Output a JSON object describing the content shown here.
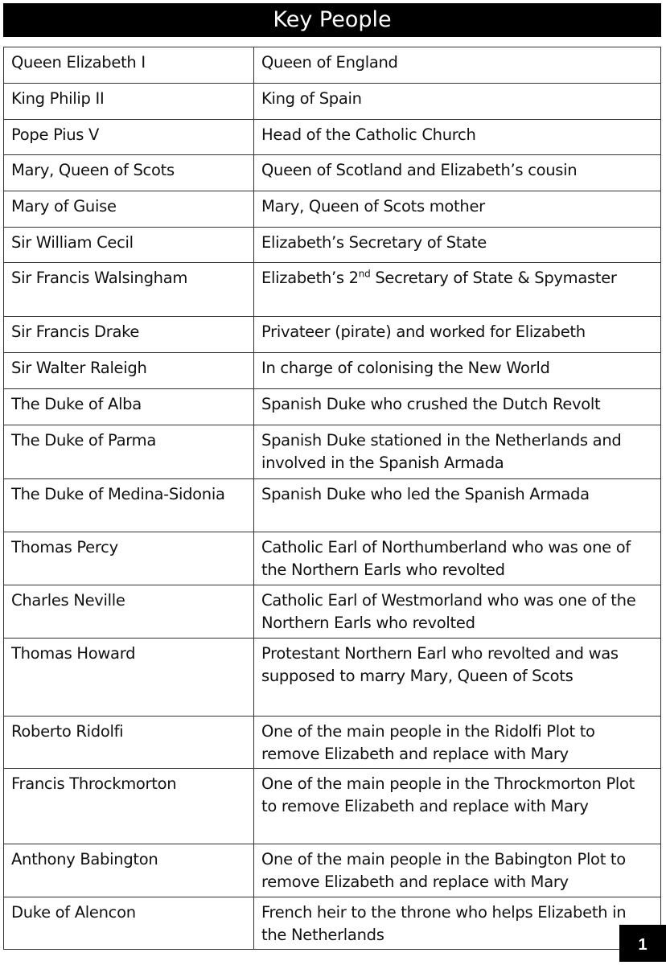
{
  "title": "Key People",
  "page_number": "1",
  "rows": [
    {
      "name": "Queen Elizabeth I",
      "role": "Queen of England"
    },
    {
      "name": "King Philip II",
      "role": "King of Spain"
    },
    {
      "name": "Pope Pius V",
      "role": "Head of the Catholic Church"
    },
    {
      "name": "Mary, Queen of Scots",
      "role": "Queen of Scotland and Elizabeth’s cousin"
    },
    {
      "name": "Mary of Guise",
      "role": "Mary, Queen of Scots mother"
    },
    {
      "name": "Sir William Cecil",
      "role": "Elizabeth’s Secretary of State"
    },
    {
      "name": "Sir Francis Walsingham",
      "role_pre": "Elizabeth’s 2",
      "role_sup": "nd",
      "role": " Secretary of State & Spymaster"
    },
    {
      "name": "Sir Francis Drake",
      "role": "Privateer (pirate) and worked for Elizabeth"
    },
    {
      "name": "Sir Walter Raleigh",
      "role": "In charge of colonising the New World"
    },
    {
      "name": "The Duke of Alba",
      "role": "Spanish Duke who crushed the Dutch Revolt"
    },
    {
      "name": "The Duke of Parma",
      "role": "Spanish Duke stationed in the Netherlands and involved in the Spanish Armada"
    },
    {
      "name": "The Duke of Medina-Sidonia",
      "role": "Spanish Duke who led the Spanish Armada"
    },
    {
      "name": "Thomas Percy",
      "role": "Catholic Earl of Northumberland who was one of the Northern Earls who revolted"
    },
    {
      "name": "Charles Neville",
      "role": "Catholic Earl of Westmorland who was one of the Northern Earls who revolted"
    },
    {
      "name": "Thomas Howard",
      "role": "Protestant Northern Earl who revolted and was supposed to marry Mary, Queen of Scots"
    },
    {
      "name": "Roberto Ridolfi",
      "role": "One of the main people in the Ridolfi Plot to remove Elizabeth and replace with Mary"
    },
    {
      "name": "Francis Throckmorton",
      "role": "One of the main people in the Throckmorton Plot to remove Elizabeth and replace with Mary"
    },
    {
      "name": "Anthony Babington",
      "role": "One of the main people in the Babington Plot to remove Elizabeth and replace with Mary"
    },
    {
      "name": "Duke of Alencon",
      "role": "French heir to the throne who helps Elizabeth in the Netherlands"
    }
  ]
}
